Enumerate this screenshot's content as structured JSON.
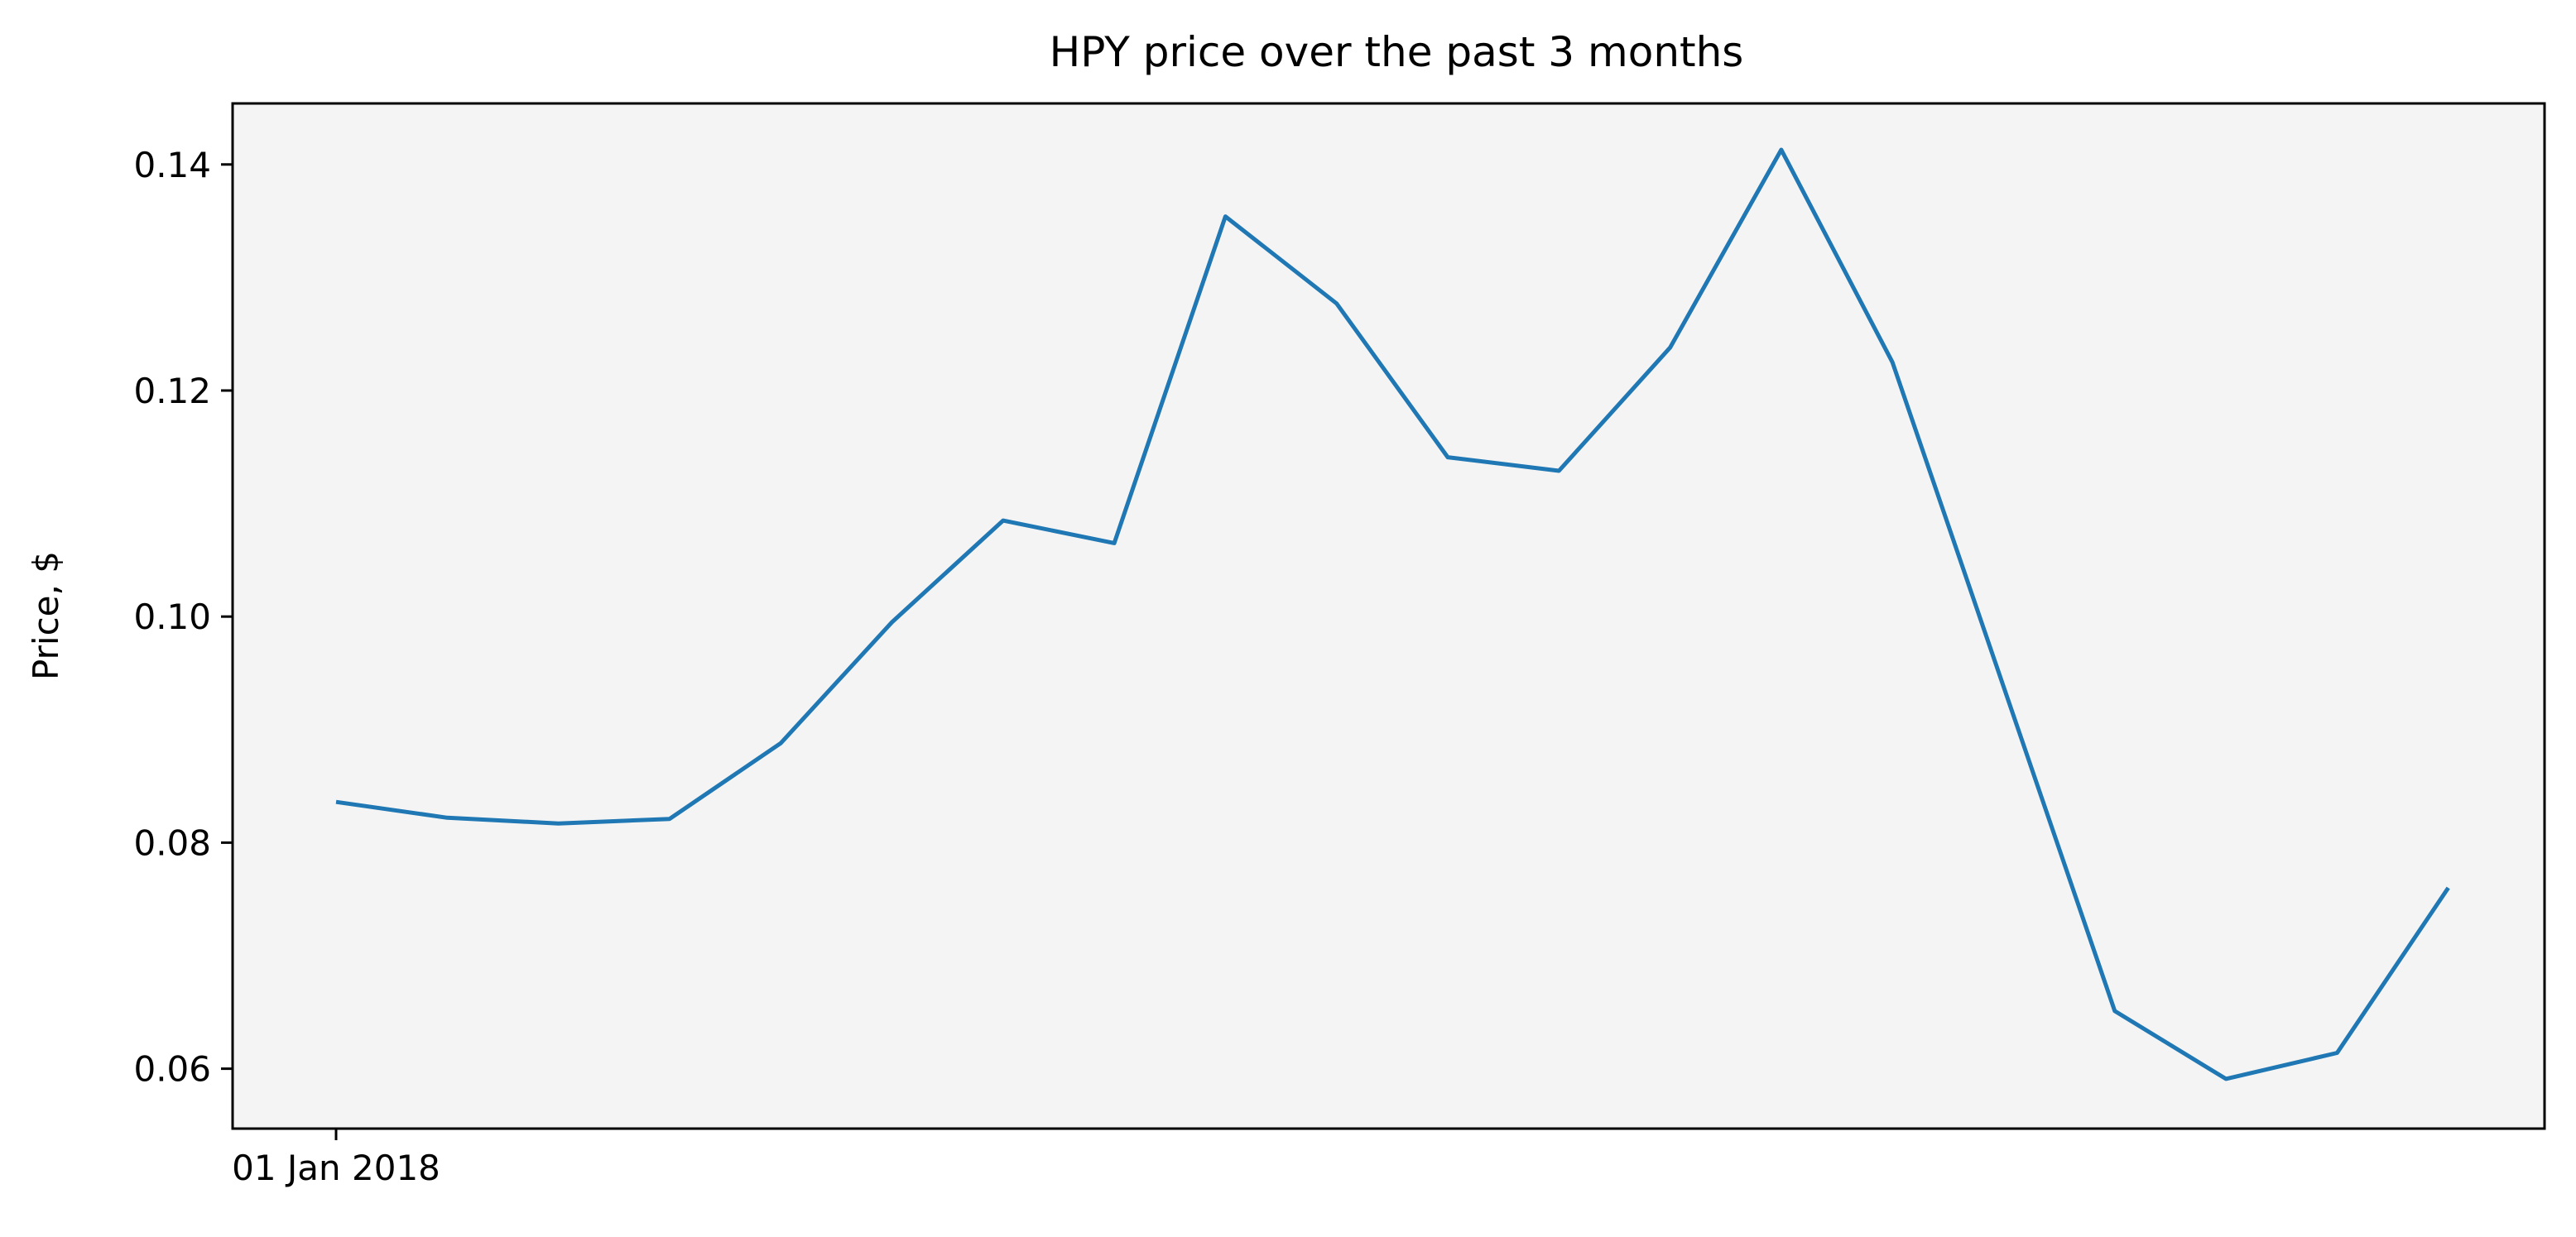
{
  "chart_data": {
    "type": "line",
    "title": "HPY price over the past 3 months",
    "xlabel": "",
    "ylabel": "Price, $",
    "x_tick_labels": [
      "01 Jan 2018"
    ],
    "y_tick_labels": [
      "0.06",
      "0.08",
      "0.10",
      "0.12",
      "0.14"
    ],
    "y_ticks": [
      0.06,
      0.08,
      0.1,
      0.12,
      0.14
    ],
    "ylim": [
      0.0547,
      0.1454
    ],
    "grid": false,
    "legend": "none",
    "colors": {
      "line": "#1f77b4",
      "plot_background": "#f4f4f4",
      "frame": "#000000"
    },
    "series": [
      {
        "values": [
          0.0836,
          0.0822,
          0.0817,
          0.0821,
          0.0888,
          0.0995,
          0.1085,
          0.1065,
          0.1354,
          0.1277,
          0.1141,
          0.1129,
          0.1238,
          0.1413,
          0.1225,
          0.0938,
          0.0651,
          0.0591,
          0.0614,
          0.076
        ]
      }
    ]
  }
}
